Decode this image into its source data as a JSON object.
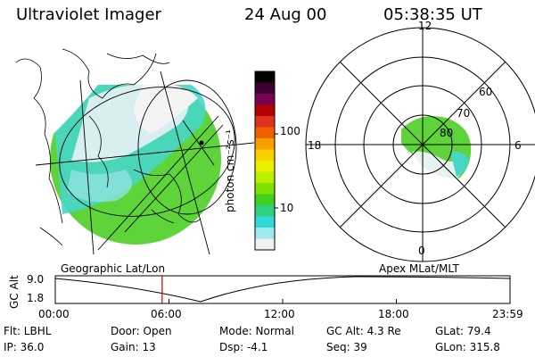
{
  "header": {
    "instrument": "Ultraviolet Imager",
    "date": "24 Aug 00",
    "time": "05:38:35 UT"
  },
  "colorbar": {
    "unit_label": "photon cm⁻²s⁻¹",
    "scale": "log",
    "ticks": [
      "100",
      "10"
    ],
    "colors": [
      "#000000",
      "#3a0030",
      "#7a0050",
      "#b40000",
      "#e03020",
      "#f06000",
      "#f8a000",
      "#f8d000",
      "#e8f000",
      "#b8f000",
      "#80e000",
      "#40d020",
      "#30d080",
      "#30d8d8",
      "#a0e8f0",
      "#f0f0f0"
    ]
  },
  "geo_panel": {
    "label": "Geographic Lat/Lon"
  },
  "polar_panel": {
    "label": "Apex MLat/MLT",
    "mlt_labels": [
      "12",
      "18",
      "6",
      "0"
    ],
    "lat_labels": [
      "60",
      "70",
      "80"
    ]
  },
  "orbit_plot": {
    "ylabel": "GC Alt",
    "yticks": [
      "9.0",
      "1.8"
    ],
    "xticks": [
      "00:00",
      "06:00",
      "12:00",
      "18:00",
      "23:59"
    ],
    "current_time_fraction": 0.235
  },
  "info": {
    "flt": "Flt: LBHL",
    "ip": "IP: 36.0",
    "door": "Door: Open",
    "gain": "Gain: 13",
    "mode": "Mode: Normal",
    "dsp": "Dsp:    -4.1",
    "gcalt": "GC Alt: 4.3 Re",
    "seq": "Seq: 39",
    "glat": "GLat:  79.4",
    "glon": "GLon: 315.8"
  },
  "colors": {
    "marker": "#cc0000",
    "aurora_green": "#50d030",
    "aurora_cyan": "#40d8d8"
  }
}
